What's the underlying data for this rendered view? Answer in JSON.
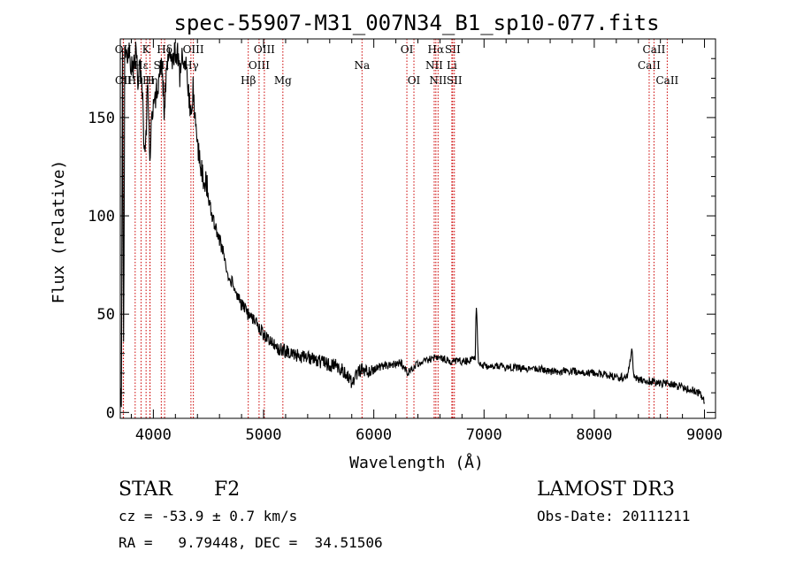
{
  "chart_data": {
    "type": "line",
    "title": "spec-55907-M31_007N34_B1_sp10-077.fits",
    "xlabel": "Wavelength (Å)",
    "ylabel": "Flux (relative)",
    "xlim": [
      3700,
      9100
    ],
    "ylim": [
      -3,
      190
    ],
    "x_ticks": [
      4000,
      5000,
      6000,
      7000,
      8000,
      9000
    ],
    "y_ticks": [
      0,
      50,
      100,
      150
    ],
    "series": [
      {
        "name": "flux",
        "x": [
          3700,
          3710,
          3720,
          3730,
          3740,
          3760,
          3780,
          3800,
          3820,
          3840,
          3860,
          3880,
          3900,
          3920,
          3933,
          3950,
          3968,
          3980,
          4000,
          4020,
          4040,
          4060,
          4080,
          4102,
          4120,
          4140,
          4160,
          4180,
          4200,
          4220,
          4240,
          4260,
          4280,
          4300,
          4320,
          4340,
          4360,
          4380,
          4400,
          4420,
          4450,
          4480,
          4500,
          4530,
          4560,
          4600,
          4640,
          4680,
          4720,
          4760,
          4800,
          4861,
          4900,
          4950,
          5000,
          5050,
          5100,
          5150,
          5200,
          5250,
          5300,
          5350,
          5400,
          5450,
          5500,
          5550,
          5600,
          5650,
          5700,
          5750,
          5800,
          5850,
          5900,
          5950,
          6000,
          6050,
          6100,
          6150,
          6200,
          6250,
          6300,
          6350,
          6400,
          6450,
          6500,
          6563,
          6600,
          6650,
          6700,
          6750,
          6800,
          6850,
          6900,
          6920,
          6930,
          6950,
          7000,
          7100,
          7200,
          7300,
          7400,
          7500,
          7600,
          7700,
          7800,
          7900,
          8000,
          8100,
          8200,
          8300,
          8340,
          8360,
          8400,
          8500,
          8600,
          8700,
          8800,
          8900,
          8950,
          8980,
          9000
        ],
        "values": [
          6,
          8,
          185,
          30,
          180,
          182,
          184,
          178,
          176,
          185,
          170,
          175,
          165,
          130,
          140,
          170,
          125,
          150,
          155,
          160,
          168,
          172,
          175,
          150,
          180,
          178,
          182,
          176,
          185,
          183,
          172,
          180,
          178,
          176,
          160,
          150,
          165,
          150,
          135,
          130,
          120,
          118,
          110,
          100,
          95,
          88,
          80,
          70,
          65,
          60,
          55,
          50,
          47,
          44,
          40,
          36,
          34,
          32,
          31,
          30,
          29,
          28,
          28,
          27,
          26,
          25,
          24,
          24,
          22,
          20,
          15,
          20,
          22,
          20,
          22,
          23,
          24,
          24,
          25,
          25,
          20,
          22,
          25,
          26,
          27,
          28,
          27,
          27,
          26,
          26,
          26,
          26,
          27,
          28,
          55,
          25,
          24,
          24,
          23,
          23,
          22,
          22,
          21,
          21,
          21,
          20,
          20,
          19,
          18,
          18,
          32,
          18,
          17,
          16,
          15,
          14,
          13,
          11,
          10,
          8,
          5
        ]
      }
    ],
    "line_markers": [
      {
        "label": "OII",
        "wavelength": 3727,
        "row": 1
      },
      {
        "label": "OII",
        "wavelength": 3729,
        "row": 3
      },
      {
        "label": "H9",
        "wavelength": 3835,
        "row": 3
      },
      {
        "label": "Hε",
        "wavelength": 3889,
        "row": 2
      },
      {
        "label": "Hη",
        "wavelength": 3970,
        "row": 3
      },
      {
        "label": "K",
        "wavelength": 3934,
        "row": 1
      },
      {
        "label": "H",
        "wavelength": 3969,
        "row": 3
      },
      {
        "label": "Hδ",
        "wavelength": 4102,
        "row": 1
      },
      {
        "label": "SII",
        "wavelength": 4072,
        "row": 2
      },
      {
        "label": "Hγ",
        "wavelength": 4341,
        "row": 2
      },
      {
        "label": "OIII",
        "wavelength": 4363,
        "row": 1
      },
      {
        "label": "Hβ",
        "wavelength": 4861,
        "row": 3
      },
      {
        "label": "OIII",
        "wavelength": 4959,
        "row": 2
      },
      {
        "label": "OIII",
        "wavelength": 5007,
        "row": 1
      },
      {
        "label": "Mg",
        "wavelength": 5175,
        "row": 3
      },
      {
        "label": "Na",
        "wavelength": 5893,
        "row": 2
      },
      {
        "label": "OI",
        "wavelength": 6300,
        "row": 1
      },
      {
        "label": "OI",
        "wavelength": 6364,
        "row": 3
      },
      {
        "label": "NII",
        "wavelength": 6548,
        "row": 2
      },
      {
        "label": "Hα",
        "wavelength": 6563,
        "row": 1
      },
      {
        "label": "NII",
        "wavelength": 6583,
        "row": 3
      },
      {
        "label": "Li",
        "wavelength": 6708,
        "row": 2
      },
      {
        "label": "SII",
        "wavelength": 6716,
        "row": 1
      },
      {
        "label": "SII",
        "wavelength": 6731,
        "row": 3
      },
      {
        "label": "CaII",
        "wavelength": 8498,
        "row": 2
      },
      {
        "label": "CaII",
        "wavelength": 8542,
        "row": 1
      },
      {
        "label": "CaII",
        "wavelength": 8662,
        "row": 3
      }
    ]
  },
  "footer": {
    "object_class": "STAR",
    "subclass": "F2",
    "survey": "LAMOST DR3",
    "redshift_line": "cz = -53.9 ± 0.7 km/s",
    "obs_date": "Obs-Date: 20111211",
    "coords": "RA =   9.79448, DEC =  34.51506"
  },
  "colors": {
    "line": "#000000",
    "marker": "#cc0000",
    "background": "#ffffff"
  }
}
